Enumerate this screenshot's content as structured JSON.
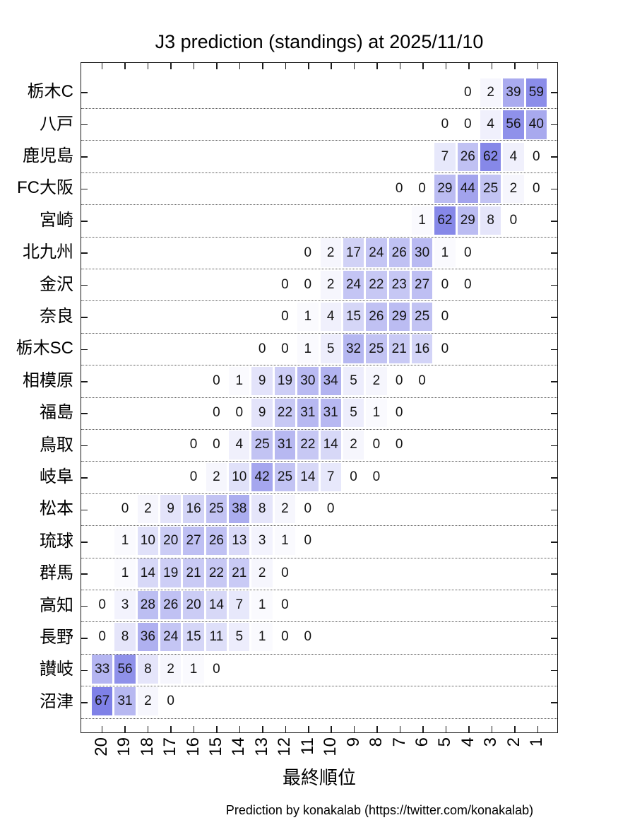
{
  "title": "J3 prediction (standings) at 2025/11/10",
  "x_axis_title": "最終順位",
  "footer": "Prediction by konakalab (https://twitter.com/konakalab)",
  "colors": {
    "heat_base": "#5255de",
    "heat_gamma": 0.75,
    "axis": "#1a1a1a",
    "value_text": "#141414",
    "gridline": "#555555"
  },
  "chart_data": {
    "type": "heatmap",
    "title": "J3 prediction (standings) at 2025/11/10",
    "xlabel": "最終順位",
    "ylabel": "",
    "unit": "probability (%)",
    "legend_position": "none",
    "grid": "dotted horizontal separators between rows",
    "x_categories": [
      "20",
      "19",
      "18",
      "17",
      "16",
      "15",
      "14",
      "13",
      "12",
      "11",
      "10",
      "9",
      "8",
      "7",
      "6",
      "5",
      "4",
      "3",
      "2",
      "1"
    ],
    "y_categories": [
      "栃木C",
      "八戸",
      "鹿児島",
      "FC大阪",
      "宮崎",
      "北九州",
      "金沢",
      "奈良",
      "栃木SC",
      "相模原",
      "福島",
      "鳥取",
      "岐阜",
      "松本",
      "琉球",
      "群馬",
      "高知",
      "長野",
      "讃岐",
      "沼津"
    ],
    "series": [
      {
        "team": "栃木C",
        "values": [
          null,
          null,
          null,
          null,
          null,
          null,
          null,
          null,
          null,
          null,
          null,
          null,
          null,
          null,
          null,
          null,
          0,
          2,
          39,
          59
        ]
      },
      {
        "team": "八戸",
        "values": [
          null,
          null,
          null,
          null,
          null,
          null,
          null,
          null,
          null,
          null,
          null,
          null,
          null,
          null,
          null,
          0,
          0,
          4,
          56,
          40
        ]
      },
      {
        "team": "鹿児島",
        "values": [
          null,
          null,
          null,
          null,
          null,
          null,
          null,
          null,
          null,
          null,
          null,
          null,
          null,
          null,
          null,
          7,
          26,
          62,
          4,
          0
        ]
      },
      {
        "team": "FC大阪",
        "values": [
          null,
          null,
          null,
          null,
          null,
          null,
          null,
          null,
          null,
          null,
          null,
          null,
          null,
          0,
          0,
          29,
          44,
          25,
          2,
          0
        ]
      },
      {
        "team": "宮崎",
        "values": [
          null,
          null,
          null,
          null,
          null,
          null,
          null,
          null,
          null,
          null,
          null,
          null,
          null,
          null,
          1,
          62,
          29,
          8,
          0,
          null
        ]
      },
      {
        "team": "北九州",
        "values": [
          null,
          null,
          null,
          null,
          null,
          null,
          null,
          null,
          null,
          0,
          2,
          17,
          24,
          26,
          30,
          1,
          0,
          null,
          null,
          null
        ]
      },
      {
        "team": "金沢",
        "values": [
          null,
          null,
          null,
          null,
          null,
          null,
          null,
          null,
          0,
          0,
          2,
          24,
          22,
          23,
          27,
          0,
          0,
          null,
          null,
          null
        ]
      },
      {
        "team": "奈良",
        "values": [
          null,
          null,
          null,
          null,
          null,
          null,
          null,
          null,
          0,
          1,
          4,
          15,
          26,
          29,
          25,
          0,
          null,
          null,
          null,
          null
        ]
      },
      {
        "team": "栃木SC",
        "values": [
          null,
          null,
          null,
          null,
          null,
          null,
          null,
          0,
          0,
          1,
          5,
          32,
          25,
          21,
          16,
          0,
          null,
          null,
          null,
          null
        ]
      },
      {
        "team": "相模原",
        "values": [
          null,
          null,
          null,
          null,
          null,
          0,
          1,
          9,
          19,
          30,
          34,
          5,
          2,
          0,
          0,
          null,
          null,
          null,
          null,
          null
        ]
      },
      {
        "team": "福島",
        "values": [
          null,
          null,
          null,
          null,
          null,
          0,
          0,
          9,
          22,
          31,
          31,
          5,
          1,
          0,
          null,
          null,
          null,
          null,
          null,
          null
        ]
      },
      {
        "team": "鳥取",
        "values": [
          null,
          null,
          null,
          null,
          0,
          0,
          4,
          25,
          31,
          22,
          14,
          2,
          0,
          0,
          null,
          null,
          null,
          null,
          null,
          null
        ]
      },
      {
        "team": "岐阜",
        "values": [
          null,
          null,
          null,
          null,
          0,
          2,
          10,
          42,
          25,
          14,
          7,
          0,
          0,
          null,
          null,
          null,
          null,
          null,
          null,
          null
        ]
      },
      {
        "team": "松本",
        "values": [
          null,
          0,
          2,
          9,
          16,
          25,
          38,
          8,
          2,
          0,
          0,
          null,
          null,
          null,
          null,
          null,
          null,
          null,
          null,
          null
        ]
      },
      {
        "team": "琉球",
        "values": [
          null,
          1,
          10,
          20,
          27,
          26,
          13,
          3,
          1,
          0,
          null,
          null,
          null,
          null,
          null,
          null,
          null,
          null,
          null,
          null
        ]
      },
      {
        "team": "群馬",
        "values": [
          null,
          1,
          14,
          19,
          21,
          22,
          21,
          2,
          0,
          null,
          null,
          null,
          null,
          null,
          null,
          null,
          null,
          null,
          null,
          null
        ]
      },
      {
        "team": "高知",
        "values": [
          0,
          3,
          28,
          26,
          20,
          14,
          7,
          1,
          0,
          null,
          null,
          null,
          null,
          null,
          null,
          null,
          null,
          null,
          null,
          null
        ]
      },
      {
        "team": "長野",
        "values": [
          0,
          8,
          36,
          24,
          15,
          11,
          5,
          1,
          0,
          0,
          null,
          null,
          null,
          null,
          null,
          null,
          null,
          null,
          null,
          null
        ]
      },
      {
        "team": "讃岐",
        "values": [
          33,
          56,
          8,
          2,
          1,
          0,
          null,
          null,
          null,
          null,
          null,
          null,
          null,
          null,
          null,
          null,
          null,
          null,
          null,
          null
        ]
      },
      {
        "team": "沼津",
        "values": [
          67,
          31,
          2,
          0,
          null,
          null,
          null,
          null,
          null,
          null,
          null,
          null,
          null,
          null,
          null,
          null,
          null,
          null,
          null,
          null
        ]
      }
    ]
  }
}
